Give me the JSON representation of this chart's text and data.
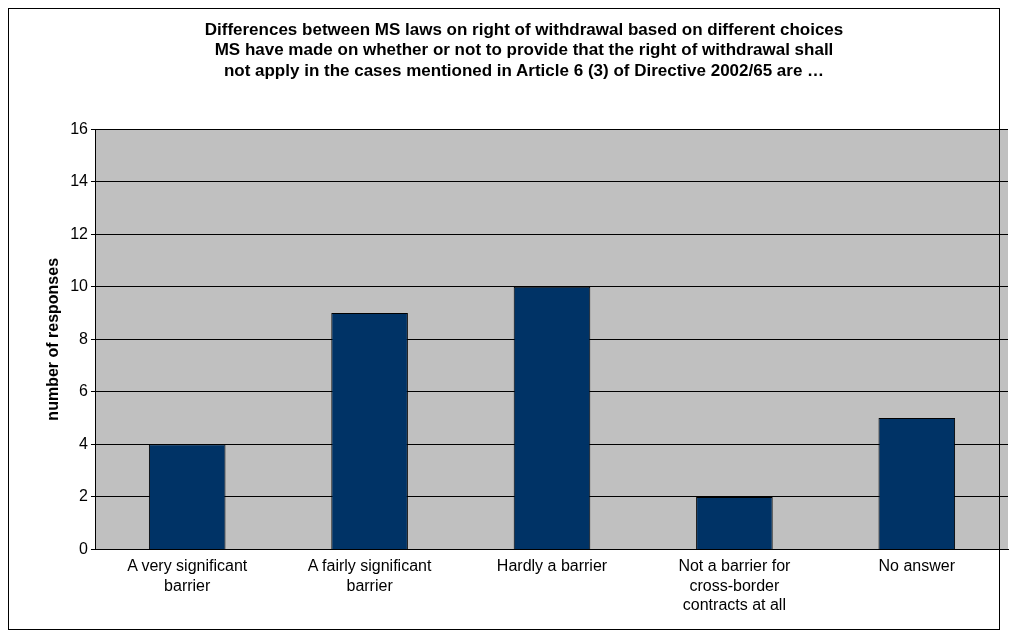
{
  "chart_data": {
    "type": "bar",
    "title": "Differences between MS laws on right of withdrawal based on different choices MS have made on whether or not to provide that the right of withdrawal shall not apply in the cases mentioned in Article 6 (3) of Directive 2002/65 are …",
    "ylabel": "number of responses",
    "categories": [
      "A very significant barrier",
      "A fairly significant barrier",
      "Hardly a barrier",
      "Not a barrier for cross-border contracts at all",
      "No answer"
    ],
    "values": [
      4,
      9,
      10,
      2,
      5
    ],
    "color": "#003366",
    "ylim": [
      0,
      16
    ],
    "yticks": [
      0,
      2,
      4,
      6,
      8,
      10,
      12,
      14,
      16
    ],
    "grid": "y",
    "legend": false
  }
}
